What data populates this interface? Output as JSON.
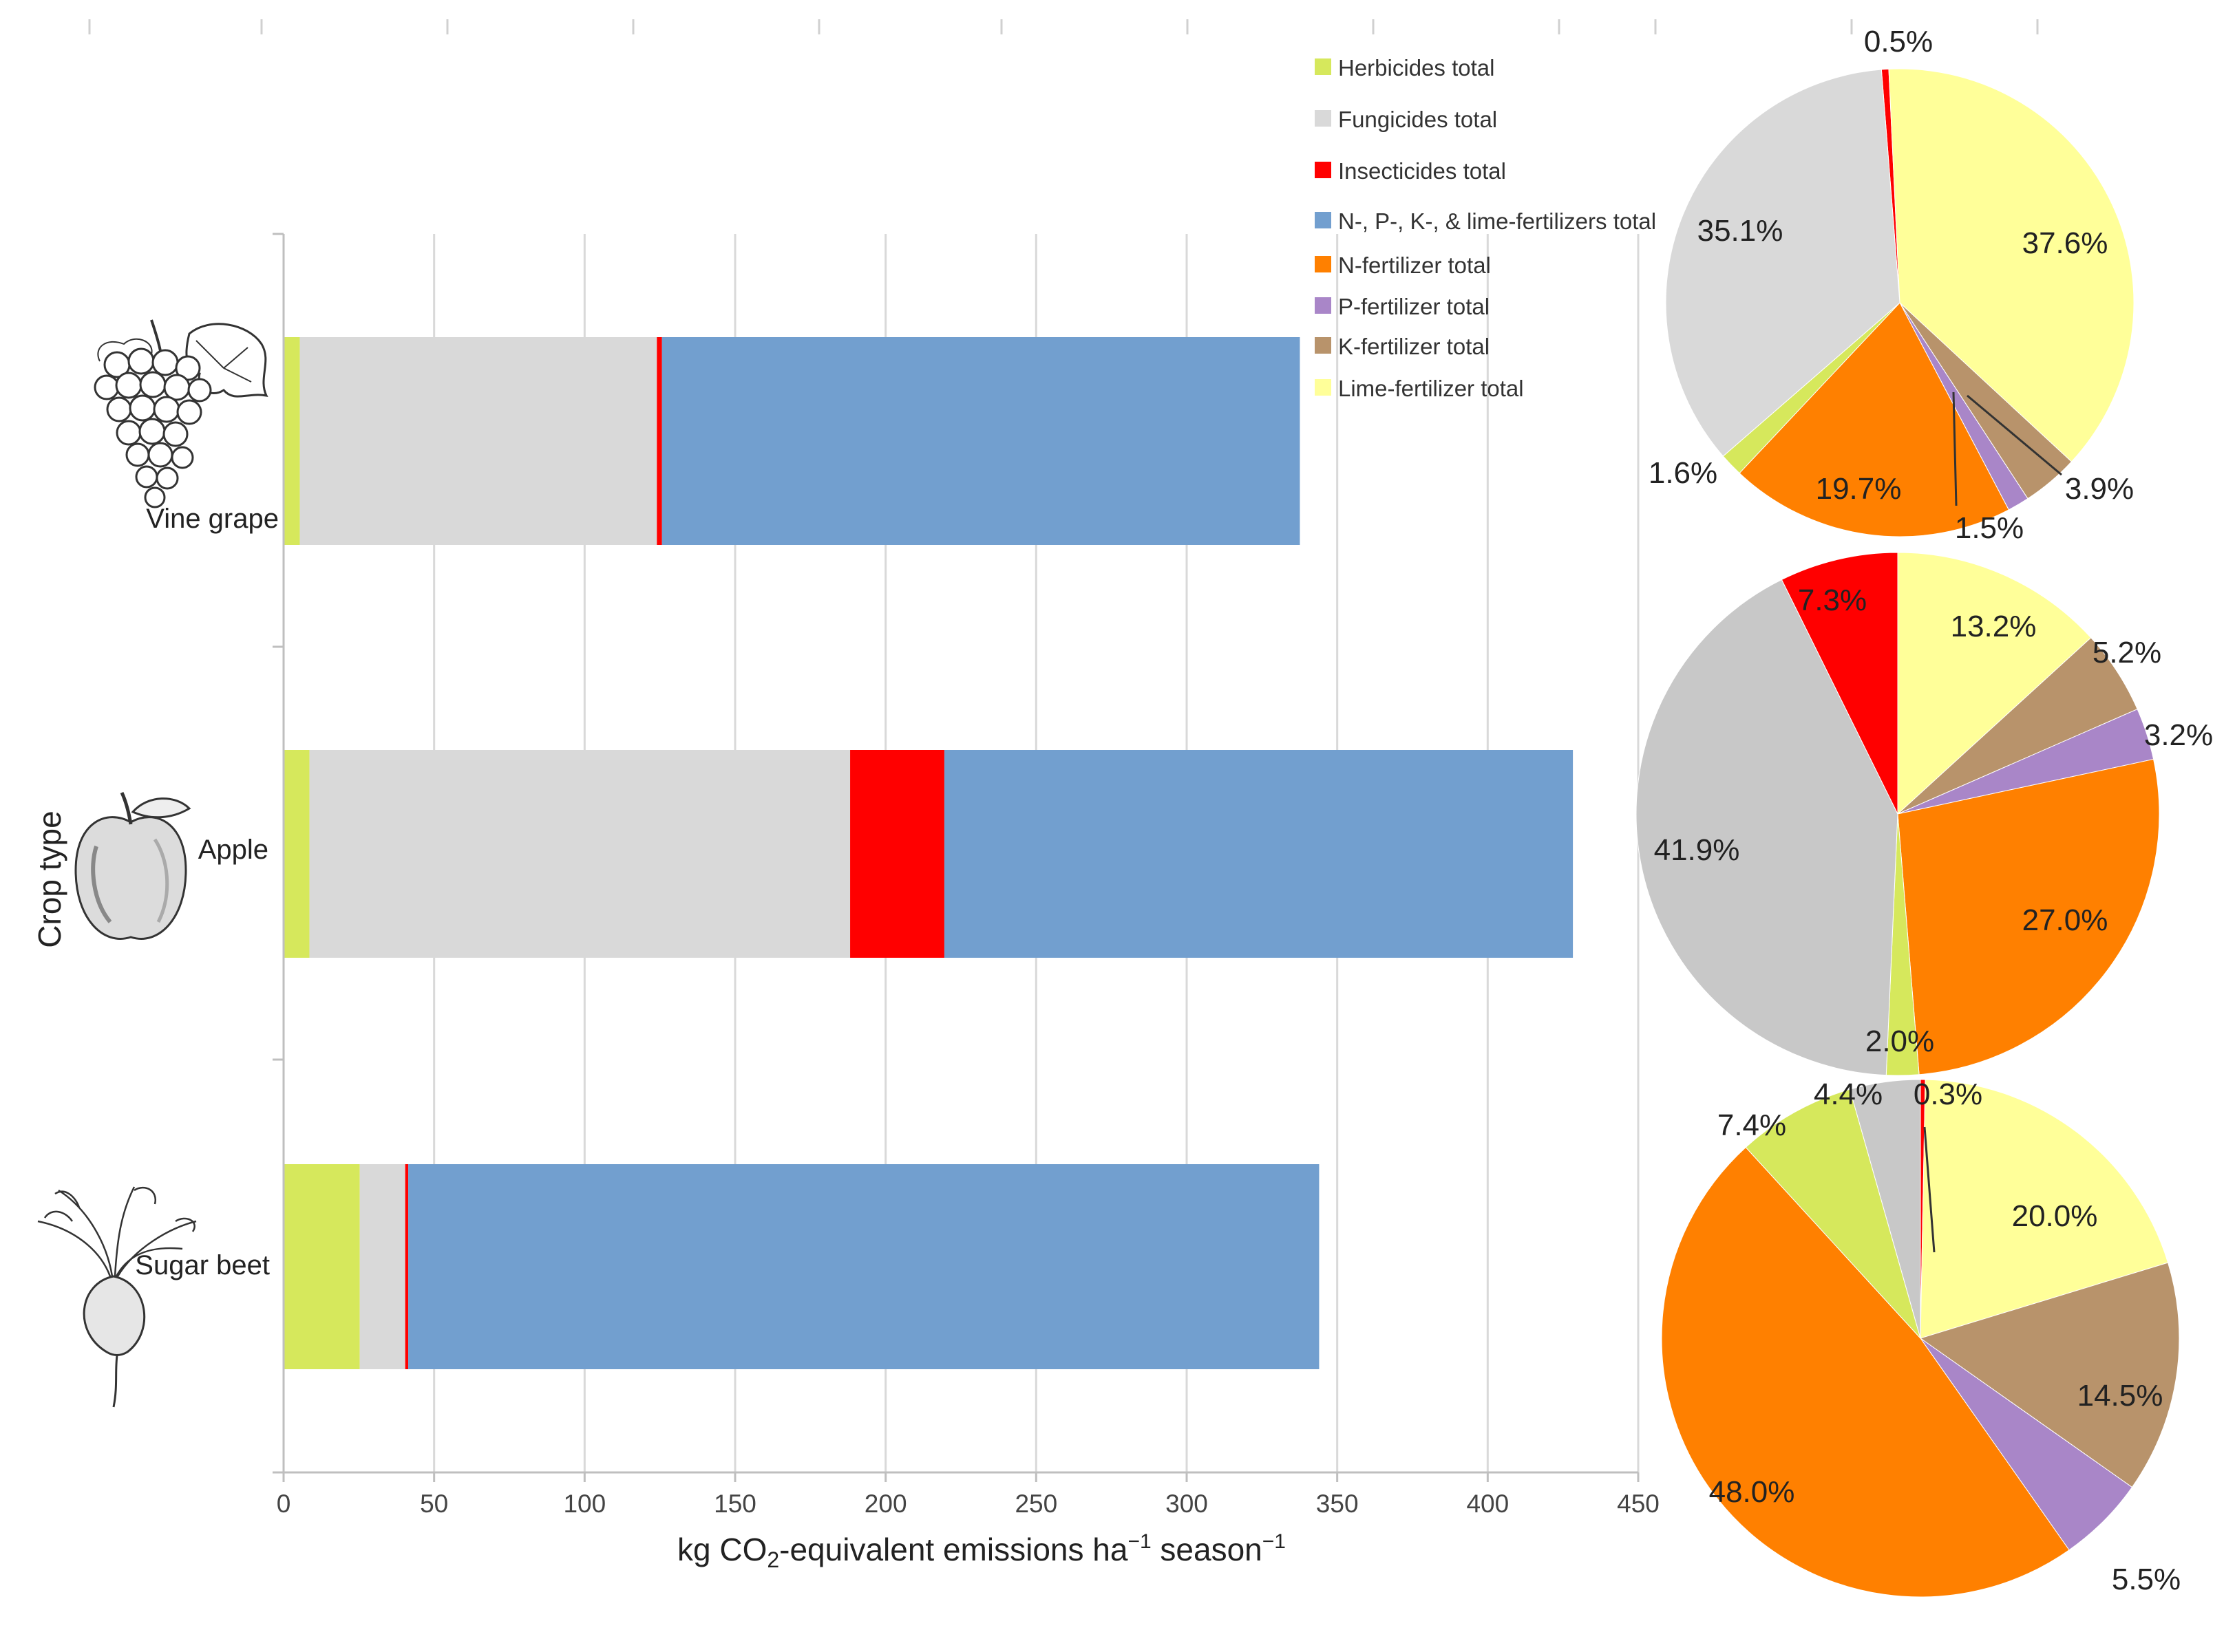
{
  "chart_data": [
    {
      "type": "bar",
      "orientation": "horizontal",
      "stacked": true,
      "ylabel": "Crop type",
      "xlabel_parts": [
        "kg CO",
        "2",
        "-equivalent emissions ha",
        "−1",
        " season",
        "−1"
      ],
      "xlim": [
        0,
        450
      ],
      "x_ticks": [
        "0",
        "50",
        "100",
        "150",
        "200",
        "250",
        "300",
        "350",
        "400",
        "450"
      ],
      "grid": true,
      "categories": [
        "Vine grape",
        "Apple",
        "Sugar beet"
      ],
      "series": [
        {
          "name": "Herbicides total",
          "color": "#d6e85c",
          "values": [
            5.4,
            8.6,
            25.3
          ]
        },
        {
          "name": "Fungicides total",
          "color": "#d9d9d9",
          "values": [
            118.6,
            179.6,
            15.1
          ]
        },
        {
          "name": "Insecticides total",
          "color": "#ff0000",
          "values": [
            1.7,
            31.3,
            1.0
          ]
        },
        {
          "name": "N-, P-, K-, & lime-fertilizers total",
          "color": "#729fcf",
          "values": [
            211.9,
            208.8,
            302.6
          ]
        }
      ]
    },
    {
      "type": "pie",
      "crop": "Vine grape",
      "slices": [
        {
          "name": "Insecticides total",
          "value": 0.5,
          "label": "0.5%",
          "color": "#ff0000"
        },
        {
          "name": "Lime-fertilizer total",
          "value": 37.6,
          "label": "37.6%",
          "color": "#ffff99"
        },
        {
          "name": "K-fertilizer total",
          "value": 3.9,
          "label": "3.9%",
          "color": "#b8936b"
        },
        {
          "name": "P-fertilizer total",
          "value": 1.5,
          "label": "1.5%",
          "color": "#a986c8"
        },
        {
          "name": "N-fertilizer total",
          "value": 19.7,
          "label": "19.7%",
          "color": "#ff8000"
        },
        {
          "name": "Herbicides total",
          "value": 1.6,
          "label": "1.6%",
          "color": "#d6e85c"
        },
        {
          "name": "Fungicides total",
          "value": 35.1,
          "label": "35.1%",
          "color": "#d9d9d9"
        }
      ]
    },
    {
      "type": "pie",
      "crop": "Apple",
      "slices": [
        {
          "name": "Lime-fertilizer total",
          "value": 13.2,
          "label": "13.2%",
          "color": "#ffff99"
        },
        {
          "name": "K-fertilizer total",
          "value": 5.2,
          "label": "5.2%",
          "color": "#b8936b"
        },
        {
          "name": "P-fertilizer total",
          "value": 3.2,
          "label": "3.2%",
          "color": "#a986c8"
        },
        {
          "name": "N-fertilizer total",
          "value": 27.0,
          "label": "27.0%",
          "color": "#ff8000"
        },
        {
          "name": "Herbicides total",
          "value": 2.0,
          "label": "2.0%",
          "color": "#d6e85c"
        },
        {
          "name": "Fungicides total",
          "value": 41.9,
          "label": "41.9%",
          "color": "#c8c8c8"
        },
        {
          "name": "Insecticides total",
          "value": 7.3,
          "label": "7.3%",
          "color": "#ff0000"
        }
      ]
    },
    {
      "type": "pie",
      "crop": "Sugar beet",
      "slices": [
        {
          "name": "Insecticides total",
          "value": 0.3,
          "label": "0.3%",
          "color": "#ff0000"
        },
        {
          "name": "Lime-fertilizer total",
          "value": 20.0,
          "label": "20.0%",
          "color": "#ffff99"
        },
        {
          "name": "K-fertilizer total",
          "value": 14.5,
          "label": "14.5%",
          "color": "#b8936b"
        },
        {
          "name": "P-fertilizer total",
          "value": 5.5,
          "label": "5.5%",
          "color": "#a986c8"
        },
        {
          "name": "N-fertilizer total",
          "value": 48.0,
          "label": "48.0%",
          "color": "#ff8000"
        },
        {
          "name": "Herbicides total",
          "value": 7.4,
          "label": "7.4%",
          "color": "#d6e85c"
        },
        {
          "name": "Fungicides total",
          "value": 4.4,
          "label": "4.4%",
          "color": "#c8c8c8"
        }
      ]
    }
  ],
  "legend": {
    "position": "top-right",
    "entries": [
      {
        "label": "Herbicides total",
        "color": "#d6e85c"
      },
      {
        "label": "Fungicides total",
        "color": "#d9d9d9"
      },
      {
        "label": "Insecticides total",
        "color": "#ff0000"
      },
      {
        "label": "N-, P-, K-, & lime-fertilizers total",
        "color": "#729fcf"
      },
      {
        "label": "N-fertilizer total",
        "color": "#ff8000"
      },
      {
        "label": "P-fertilizer total",
        "color": "#a986c8"
      },
      {
        "label": "K-fertilizer total",
        "color": "#b8936b"
      },
      {
        "label": "Lime-fertilizer total",
        "color": "#ffff99"
      }
    ]
  },
  "icons": [
    "grape-cluster-icon",
    "apple-icon",
    "sugar-beet-icon"
  ],
  "colors": {
    "grid": "#d9d9d9",
    "axis": "#bfbfbf",
    "text": "#222222"
  }
}
